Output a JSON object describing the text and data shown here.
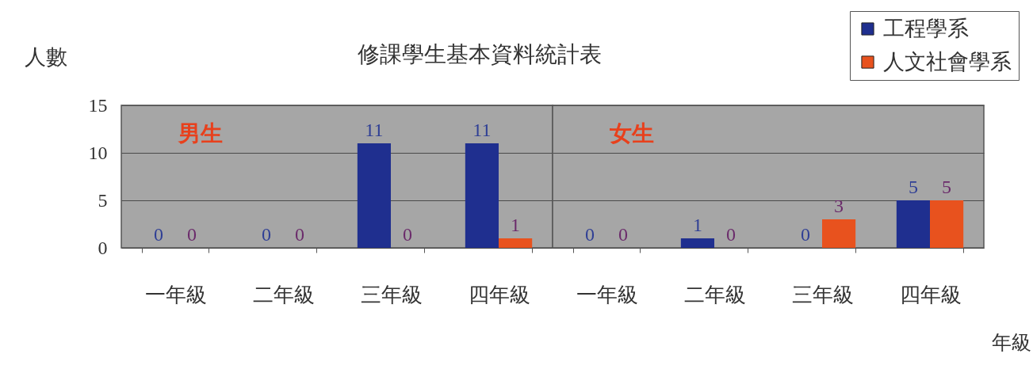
{
  "chart_data": [
    {
      "type": "bar",
      "title": "修課學生基本資料統計表",
      "ylabel": "人數",
      "annotations": [
        "男生"
      ],
      "categories": [
        "一年級",
        "二年級",
        "三年級",
        "四年級"
      ],
      "series": [
        {
          "name": "工程學系",
          "color": "#1f2f8f",
          "values": [
            0,
            0,
            11,
            11
          ]
        },
        {
          "name": "人文社會學系",
          "color": "#e8521e",
          "values": [
            0,
            0,
            0,
            1
          ]
        }
      ],
      "ylim": [
        0,
        15
      ],
      "yticks": [
        0,
        5,
        10,
        15
      ],
      "grid": "y",
      "data_labels": true,
      "legend": "top right"
    },
    {
      "type": "bar",
      "xlabel": "年級",
      "annotations": [
        "女生"
      ],
      "categories": [
        "一年級",
        "二年級",
        "三年級",
        "四年級"
      ],
      "series": [
        {
          "name": "工程學系",
          "color": "#1f2f8f",
          "values": [
            0,
            1,
            0,
            5
          ]
        },
        {
          "name": "人文社會學系",
          "color": "#e8521e",
          "values": [
            0,
            0,
            3,
            5
          ]
        }
      ],
      "ylim": [
        0,
        15
      ],
      "yticks": [
        0,
        5,
        10,
        15
      ],
      "grid": "y",
      "data_labels": true,
      "tick_labels": "x",
      "legend": "top right"
    }
  ]
}
